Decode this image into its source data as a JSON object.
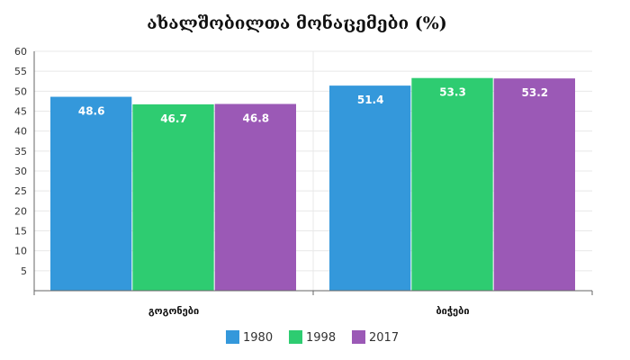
{
  "chart_data": {
    "type": "bar",
    "title": "ახალშობილთა მონაცემები (%)",
    "xlabel": "",
    "ylabel": "",
    "categories": [
      "გოგონები",
      "ბიჭები"
    ],
    "series": [
      {
        "name": "1980",
        "values": [
          48.6,
          51.4
        ],
        "color": "#3498db"
      },
      {
        "name": "1998",
        "values": [
          46.7,
          53.3
        ],
        "color": "#2ecc71"
      },
      {
        "name": "2017",
        "values": [
          46.8,
          53.2
        ],
        "color": "#9b59b6"
      }
    ],
    "ylim": [
      0,
      60
    ],
    "yticks": [
      0,
      5,
      10,
      15,
      20,
      25,
      30,
      35,
      40,
      45,
      50,
      55,
      60
    ],
    "grid": true,
    "legend": "bottom-center"
  }
}
